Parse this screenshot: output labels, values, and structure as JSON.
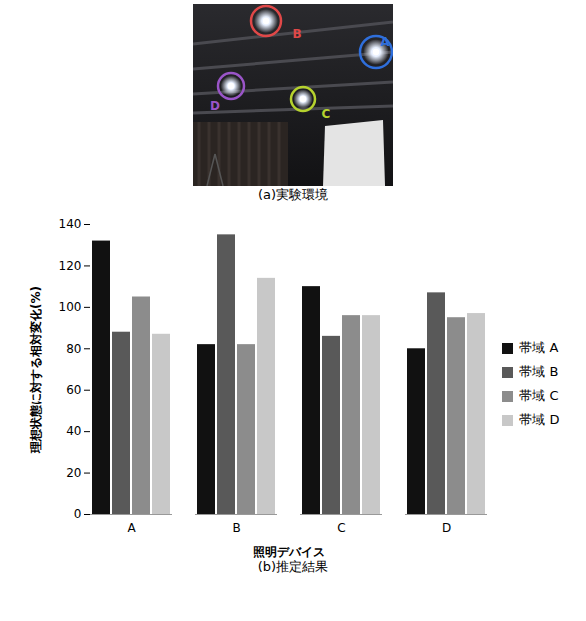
{
  "photo": {
    "caption": "(a)実験環境",
    "labels": [
      {
        "text": "A",
        "color": "#2f6fdc"
      },
      {
        "text": "B",
        "color": "#e04848"
      },
      {
        "text": "C",
        "color": "#b6d22e"
      },
      {
        "text": "D",
        "color": "#9a55c8"
      }
    ]
  },
  "chart_data": {
    "type": "bar",
    "caption": "(b)推定結果",
    "xlabel": "照明デバイス",
    "ylabel": "理想状態に対する相対変化(%)",
    "categories": [
      "A",
      "B",
      "C",
      "D"
    ],
    "series": [
      {
        "name": "帯域 A",
        "color": "#111111",
        "values": [
          132,
          82,
          110,
          80
        ]
      },
      {
        "name": "帯域 B",
        "color": "#595959",
        "values": [
          88,
          135,
          86,
          107
        ]
      },
      {
        "name": "帯域 C",
        "color": "#8c8c8c",
        "values": [
          105,
          82,
          96,
          95
        ]
      },
      {
        "name": "帯域 D",
        "color": "#c8c8c8",
        "values": [
          87,
          114,
          96,
          97
        ]
      }
    ],
    "ylim": [
      0,
      140
    ],
    "yticks": [
      0,
      20,
      40,
      60,
      80,
      100,
      120,
      140
    ],
    "grid": false,
    "legend": "right"
  }
}
